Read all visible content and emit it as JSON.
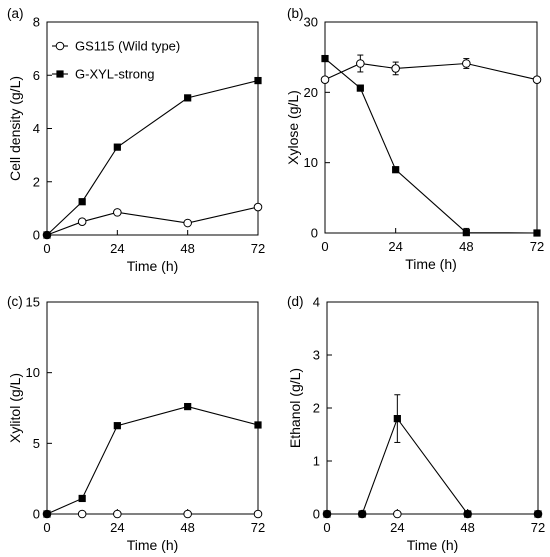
{
  "chart_data": [
    {
      "panel_label": "(a)",
      "type": "line",
      "xlabel": "Time (h)",
      "ylabel": "Cell density (g/L)",
      "xlim": [
        0,
        72
      ],
      "ylim": [
        0,
        8
      ],
      "xticks": [
        0,
        24,
        48,
        72
      ],
      "yticks": [
        0,
        2,
        4,
        6,
        8
      ],
      "grid": false,
      "legend_position": "top-left",
      "series": [
        {
          "name": "GS115 (Wild type)",
          "marker": "open-circle",
          "x": [
            0,
            12,
            24,
            48,
            72
          ],
          "y": [
            0.0,
            0.5,
            0.85,
            0.45,
            1.05
          ]
        },
        {
          "name": "G-XYL-strong",
          "marker": "filled-square",
          "x": [
            0,
            12,
            24,
            48,
            72
          ],
          "y": [
            0.0,
            1.25,
            3.3,
            5.15,
            5.8
          ]
        }
      ]
    },
    {
      "panel_label": "(b)",
      "type": "line",
      "xlabel": "Time (h)",
      "ylabel": "Xylose (g/L)",
      "xlim": [
        0,
        72
      ],
      "ylim": [
        0,
        30
      ],
      "xticks": [
        0,
        24,
        48,
        72
      ],
      "yticks": [
        0,
        10,
        20,
        30
      ],
      "grid": false,
      "series": [
        {
          "marker": "open-circle",
          "x": [
            0,
            12,
            24,
            48,
            72
          ],
          "y": [
            21.8,
            24.1,
            23.4,
            24.1,
            21.8
          ],
          "err": [
            0,
            1.2,
            0.9,
            0.7,
            0
          ]
        },
        {
          "marker": "filled-square",
          "x": [
            0,
            12,
            24,
            48,
            72
          ],
          "y": [
            24.8,
            20.6,
            9.0,
            0.05,
            0.0
          ],
          "err": [
            0,
            0,
            0,
            0.6,
            0
          ]
        }
      ]
    },
    {
      "panel_label": "(c)",
      "type": "line",
      "xlabel": "Time (h)",
      "ylabel": "Xylitol (g/L)",
      "xlim": [
        0,
        72
      ],
      "ylim": [
        0,
        15
      ],
      "xticks": [
        0,
        24,
        48,
        72
      ],
      "yticks": [
        0,
        5,
        10,
        15
      ],
      "grid": false,
      "series": [
        {
          "marker": "open-circle",
          "x": [
            0,
            12,
            24,
            48,
            72
          ],
          "y": [
            0,
            0,
            0,
            0,
            0
          ]
        },
        {
          "marker": "filled-square",
          "x": [
            0,
            12,
            24,
            48,
            72
          ],
          "y": [
            0.0,
            1.1,
            6.25,
            7.6,
            6.3
          ]
        }
      ]
    },
    {
      "panel_label": "(d)",
      "type": "line",
      "xlabel": "Time (h)",
      "ylabel": "Ethanol (g/L)",
      "xlim": [
        0,
        72
      ],
      "ylim": [
        0,
        4
      ],
      "xticks": [
        0,
        24,
        48,
        72
      ],
      "yticks": [
        0,
        1,
        2,
        3,
        4
      ],
      "grid": false,
      "series": [
        {
          "marker": "open-circle",
          "x": [
            0,
            12,
            24,
            48,
            72
          ],
          "y": [
            0,
            0,
            0,
            0,
            0
          ]
        },
        {
          "marker": "filled-square",
          "x": [
            0,
            12,
            24,
            48,
            72
          ],
          "y": [
            0.0,
            0.0,
            1.8,
            0.0,
            0.0
          ],
          "err": [
            0,
            0,
            0.45,
            0,
            0
          ]
        }
      ]
    }
  ]
}
